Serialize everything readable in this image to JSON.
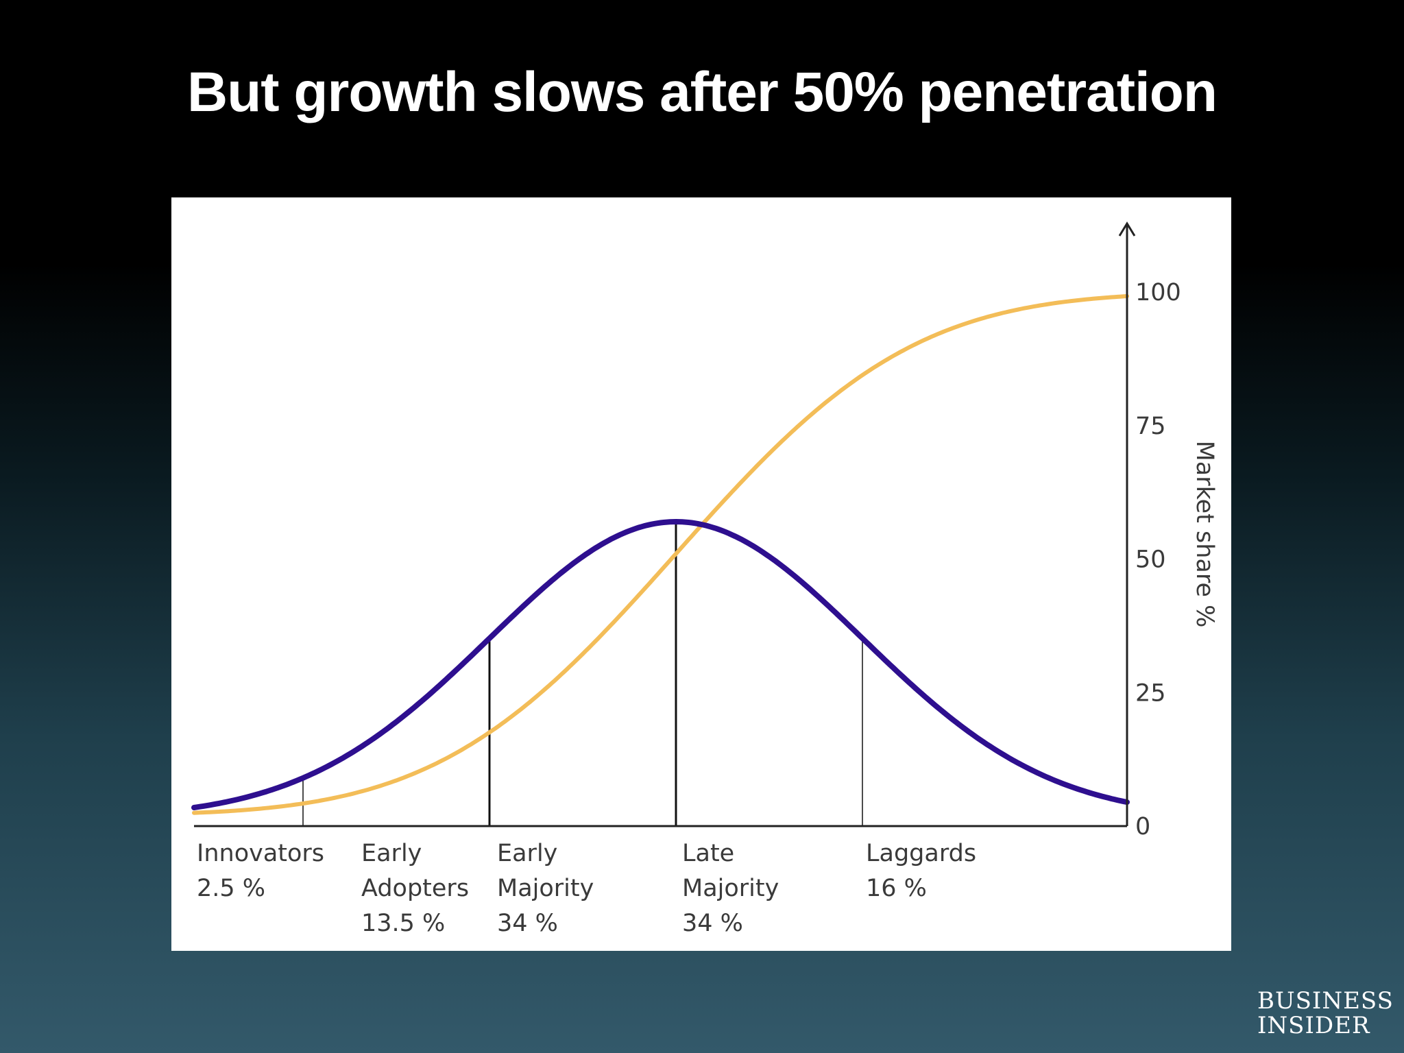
{
  "slide": {
    "title": "But growth slows after 50% penetration"
  },
  "logo": {
    "line1": "BUSINESS",
    "line2": "INSIDER"
  },
  "colors": {
    "adoption_curve": "#2e0f8f",
    "market_share_curve": "#f3bd58",
    "axis": "#222222",
    "panel": "#ffffff"
  },
  "chart_data": {
    "type": "line",
    "ylabel": "Market share %",
    "ylim": [
      0,
      100
    ],
    "yticks": [
      "0",
      "25",
      "50",
      "75",
      "100"
    ],
    "y_axis_position": "right",
    "grid": false,
    "segments": [
      {
        "name": "Innovators",
        "line1": "Innovators",
        "line2": "2.5 %",
        "line3": "",
        "share": 2.5,
        "boundary_sd": -2
      },
      {
        "name": "Early Adopters",
        "line1": "Early",
        "line2": "Adopters",
        "line3": "13.5 %",
        "share": 13.5,
        "boundary_sd": -1
      },
      {
        "name": "Early Majority",
        "line1": "Early",
        "line2": "Majority",
        "line3": "34 %",
        "share": 34,
        "boundary_sd": 0
      },
      {
        "name": "Late Majority",
        "line1": "Late",
        "line2": "Majority",
        "line3": "34 %",
        "share": 34,
        "boundary_sd": 1
      },
      {
        "name": "Laggards",
        "line1": "Laggards",
        "line2": "16 %",
        "line3": "",
        "share": 16,
        "boundary_sd": null
      }
    ],
    "series": [
      {
        "key": "adoption",
        "kind": "bell",
        "peak": 57,
        "baseline": 1.5
      },
      {
        "key": "market_share",
        "kind": "cumulative",
        "min": 2,
        "max": 100
      }
    ]
  }
}
